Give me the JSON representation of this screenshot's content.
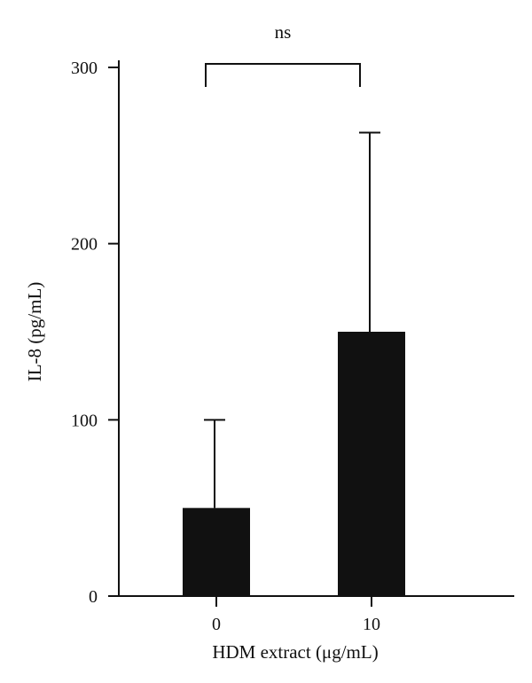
{
  "chart_data": {
    "type": "bar",
    "categories": [
      "0",
      "10"
    ],
    "values": [
      50,
      150
    ],
    "error_upper": [
      100,
      263
    ],
    "xlabel": "HDM extract (μg/mL)",
    "ylabel": "IL-8 (pg/mL)",
    "ylim": [
      0,
      300
    ],
    "yticks": [
      0,
      100,
      200,
      300
    ],
    "grid": false,
    "significance": {
      "label": "ns",
      "between": [
        "0",
        "10"
      ]
    },
    "bar_color": "#111111"
  }
}
